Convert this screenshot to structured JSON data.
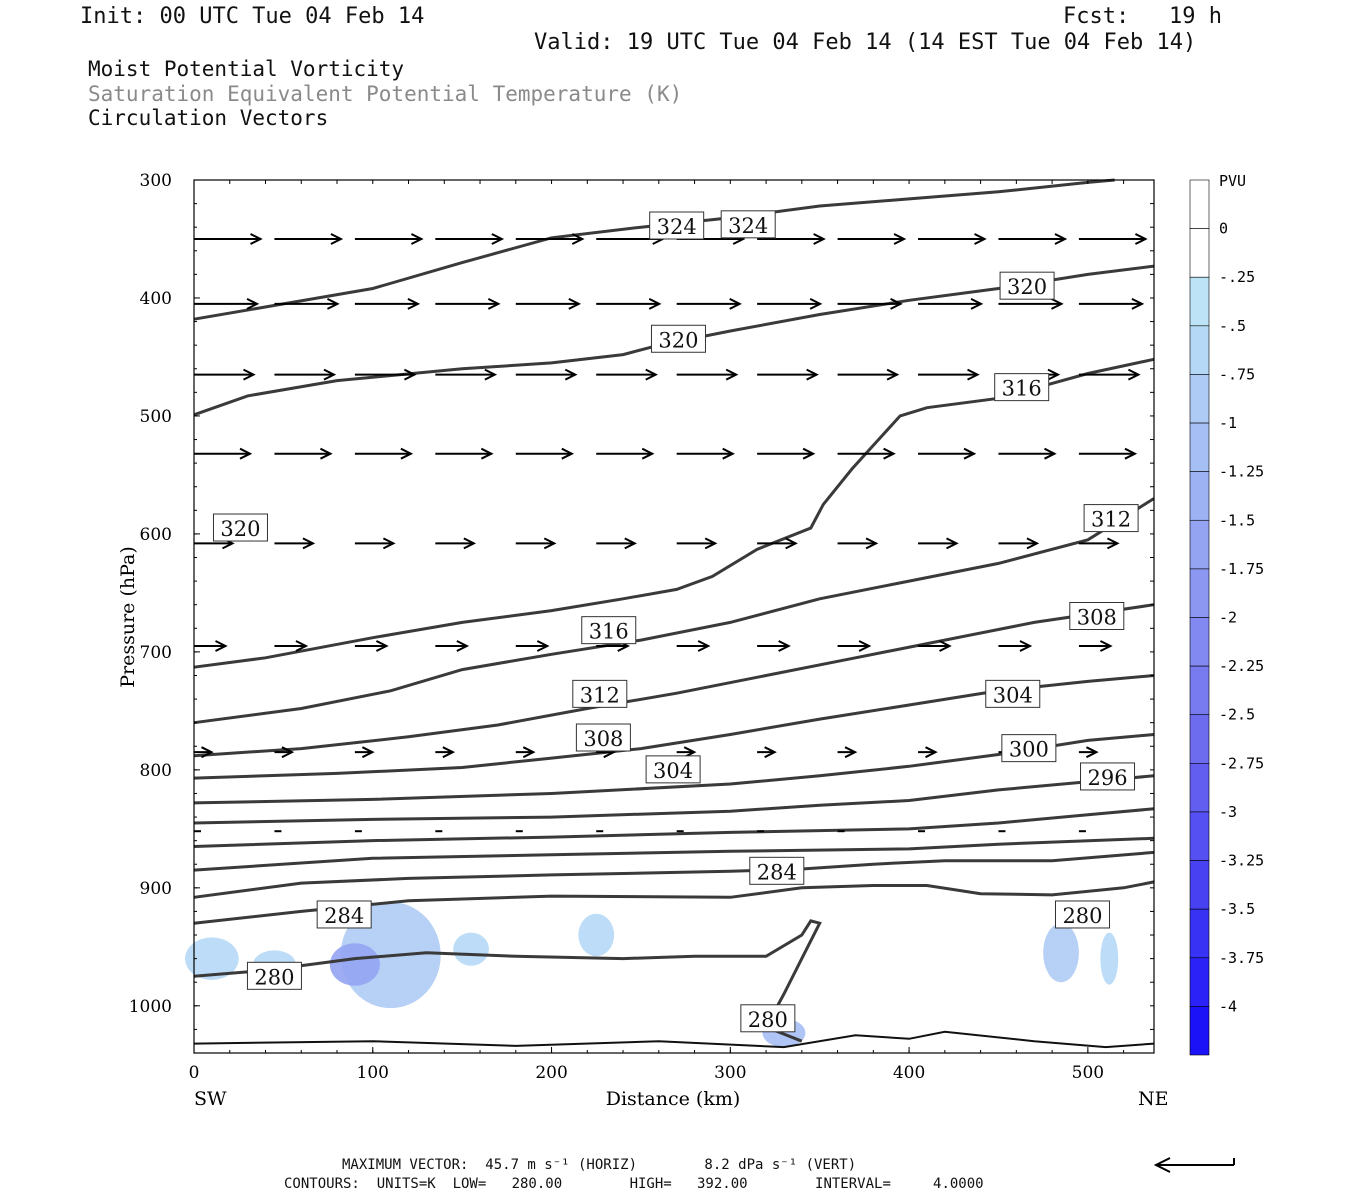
{
  "header": {
    "init": "Init: 00 UTC Tue 04 Feb 14",
    "fcst": "Fcst:   19 h",
    "valid": "Valid: 19 UTC Tue 04 Feb 14 (14 EST Tue 04 Feb 14)"
  },
  "titles": {
    "line1": "Moist Potential Vorticity",
    "line2": "Saturation Equivalent Potential Temperature (K)",
    "line3": "Circulation Vectors"
  },
  "footer": {
    "max_vector": "MAXIMUM VECTOR:  45.7 m s⁻¹ (HORIZ)        8.2 dPa s⁻¹ (VERT)",
    "contours": "CONTOURS:  UNITS=K  LOW=   280.00        HIGH=   392.00        INTERVAL=     4.0000"
  },
  "colors": {
    "contour": "#3a3a3a",
    "vector": "#000000",
    "frame": "#000000"
  },
  "chart_data": {
    "type": "cross-section",
    "xlabel": "Distance (km)",
    "ylabel": "Pressure (hPa)",
    "xlim": [
      0,
      537
    ],
    "ylim": [
      1040,
      300
    ],
    "x_ticks": [
      0,
      100,
      200,
      300,
      400,
      500
    ],
    "y_ticks": [
      300,
      400,
      500,
      600,
      700,
      800,
      900,
      1000
    ],
    "x_end_labels": {
      "left": "SW",
      "right": "NE"
    },
    "colorbar": {
      "unit": "PVU",
      "labels": [
        "0",
        "-.25",
        "-.5",
        "-.75",
        "-1",
        "-1.25",
        "-1.5",
        "-1.75",
        "-2",
        "-2.25",
        "-2.5",
        "-2.75",
        "-3",
        "-3.25",
        "-3.5",
        "-3.75",
        "-4"
      ],
      "colors": [
        "#ffffff",
        "#ffffff",
        "#bde3f7",
        "#b5d8f6",
        "#aecbf5",
        "#a6bff4",
        "#9db2f3",
        "#94a4f2",
        "#8b97f1",
        "#8289f0",
        "#787bf0",
        "#6d6cef",
        "#625ef0",
        "#5550f1",
        "#4741f2",
        "#3832f4",
        "#2a22f6",
        "#1c12f8"
      ]
    },
    "contours": [
      {
        "label": "324",
        "pts": [
          [
            0,
            418
          ],
          [
            50,
            405
          ],
          [
            100,
            392
          ],
          [
            150,
            370
          ],
          [
            200,
            349
          ],
          [
            250,
            340
          ],
          [
            300,
            332
          ],
          [
            350,
            322
          ],
          [
            400,
            316
          ],
          [
            450,
            310
          ],
          [
            500,
            302
          ],
          [
            515,
            300
          ]
        ]
      },
      {
        "label": "320",
        "pts": [
          [
            0,
            499
          ],
          [
            30,
            483
          ],
          [
            80,
            470
          ],
          [
            150,
            460
          ],
          [
            200,
            455
          ],
          [
            240,
            448
          ],
          [
            260,
            440
          ],
          [
            300,
            428
          ],
          [
            350,
            414
          ],
          [
            400,
            402
          ],
          [
            450,
            392
          ],
          [
            500,
            380
          ],
          [
            537,
            373
          ]
        ]
      },
      {
        "label": "316",
        "pts": [
          [
            0,
            713
          ],
          [
            40,
            705
          ],
          [
            100,
            688
          ],
          [
            150,
            675
          ],
          [
            200,
            665
          ],
          [
            240,
            655
          ],
          [
            270,
            647
          ],
          [
            290,
            636
          ],
          [
            315,
            613
          ],
          [
            345,
            595
          ],
          [
            352,
            575
          ],
          [
            368,
            545
          ],
          [
            380,
            525
          ],
          [
            395,
            500
          ],
          [
            410,
            493
          ],
          [
            450,
            485
          ],
          [
            500,
            464
          ],
          [
            537,
            452
          ]
        ]
      },
      {
        "label": "312",
        "pts": [
          [
            0,
            760
          ],
          [
            60,
            748
          ],
          [
            110,
            733
          ],
          [
            150,
            715
          ],
          [
            200,
            702
          ],
          [
            250,
            690
          ],
          [
            300,
            675
          ],
          [
            350,
            655
          ],
          [
            400,
            640
          ],
          [
            450,
            625
          ],
          [
            500,
            605
          ],
          [
            537,
            570
          ]
        ]
      },
      {
        "label": "308",
        "pts": [
          [
            0,
            788
          ],
          [
            60,
            782
          ],
          [
            120,
            772
          ],
          [
            170,
            762
          ],
          [
            220,
            748
          ],
          [
            270,
            735
          ],
          [
            320,
            720
          ],
          [
            370,
            705
          ],
          [
            420,
            690
          ],
          [
            470,
            675
          ],
          [
            537,
            660
          ]
        ]
      },
      {
        "label": "304",
        "pts": [
          [
            0,
            807
          ],
          [
            80,
            803
          ],
          [
            150,
            798
          ],
          [
            200,
            790
          ],
          [
            250,
            782
          ],
          [
            300,
            770
          ],
          [
            350,
            757
          ],
          [
            400,
            745
          ],
          [
            450,
            733
          ],
          [
            500,
            725
          ],
          [
            537,
            720
          ]
        ]
      },
      {
        "label": "300",
        "pts": [
          [
            0,
            828
          ],
          [
            100,
            825
          ],
          [
            200,
            820
          ],
          [
            300,
            812
          ],
          [
            350,
            805
          ],
          [
            400,
            797
          ],
          [
            450,
            787
          ],
          [
            500,
            775
          ],
          [
            537,
            770
          ]
        ]
      },
      {
        "label": "296",
        "pts": [
          [
            0,
            845
          ],
          [
            100,
            842
          ],
          [
            200,
            840
          ],
          [
            300,
            835
          ],
          [
            350,
            830
          ],
          [
            400,
            826
          ],
          [
            450,
            817
          ],
          [
            500,
            810
          ],
          [
            537,
            805
          ]
        ]
      },
      {
        "label": "",
        "pts": [
          [
            0,
            865
          ],
          [
            100,
            860
          ],
          [
            200,
            857
          ],
          [
            300,
            853
          ],
          [
            400,
            850
          ],
          [
            450,
            845
          ],
          [
            500,
            838
          ],
          [
            537,
            833
          ]
        ]
      },
      {
        "label": "",
        "pts": [
          [
            0,
            885
          ],
          [
            100,
            875
          ],
          [
            200,
            872
          ],
          [
            300,
            869
          ],
          [
            400,
            867
          ],
          [
            450,
            863
          ],
          [
            537,
            858
          ]
        ]
      },
      {
        "label": "",
        "pts": [
          [
            0,
            908
          ],
          [
            60,
            896
          ],
          [
            120,
            892
          ],
          [
            200,
            889
          ],
          [
            300,
            886
          ],
          [
            340,
            884
          ],
          [
            380,
            880
          ],
          [
            420,
            877
          ],
          [
            480,
            877
          ],
          [
            537,
            870
          ]
        ]
      },
      {
        "label": "284",
        "pts": [
          [
            0,
            930
          ],
          [
            60,
            920
          ],
          [
            120,
            911
          ],
          [
            200,
            907
          ],
          [
            300,
            908
          ],
          [
            340,
            900
          ],
          [
            380,
            898
          ],
          [
            410,
            898
          ],
          [
            440,
            905
          ],
          [
            480,
            906
          ],
          [
            520,
            900
          ],
          [
            537,
            895
          ]
        ]
      },
      {
        "label": "280",
        "pts": [
          [
            0,
            975
          ],
          [
            40,
            970
          ],
          [
            90,
            960
          ],
          [
            130,
            955
          ],
          [
            180,
            958
          ],
          [
            240,
            960
          ],
          [
            280,
            958
          ],
          [
            320,
            958
          ],
          [
            340,
            940
          ],
          [
            345,
            928
          ],
          [
            350,
            930
          ],
          [
            340,
            960
          ],
          [
            330,
            990
          ],
          [
            320,
            1018
          ],
          [
            340,
            1030
          ]
        ]
      }
    ],
    "contour_labels": [
      {
        "text": "324",
        "x": 270,
        "p": 339
      },
      {
        "text": "324",
        "x": 310,
        "p": 338
      },
      {
        "text": "320",
        "x": 466,
        "p": 390
      },
      {
        "text": "320",
        "x": 271,
        "p": 435
      },
      {
        "text": "316",
        "x": 463,
        "p": 476
      },
      {
        "text": "320",
        "x": 26,
        "p": 595
      },
      {
        "text": "312",
        "x": 513,
        "p": 587
      },
      {
        "text": "316",
        "x": 232,
        "p": 682
      },
      {
        "text": "308",
        "x": 505,
        "p": 670
      },
      {
        "text": "312",
        "x": 227,
        "p": 736
      },
      {
        "text": "304",
        "x": 458,
        "p": 736
      },
      {
        "text": "308",
        "x": 229,
        "p": 773
      },
      {
        "text": "300",
        "x": 467,
        "p": 782
      },
      {
        "text": "304",
        "x": 268,
        "p": 800
      },
      {
        "text": "296",
        "x": 511,
        "p": 806
      },
      {
        "text": "284",
        "x": 326,
        "p": 886
      },
      {
        "text": "284",
        "x": 84,
        "p": 923
      },
      {
        "text": "280",
        "x": 497,
        "p": 923
      },
      {
        "text": "280",
        "x": 45,
        "p": 975
      },
      {
        "text": "280",
        "x": 321,
        "p": 1011
      }
    ],
    "pv_patches": [
      {
        "x": 110,
        "p": 957,
        "rx": 28,
        "rp": 45,
        "value": -0.75
      },
      {
        "x": 90,
        "p": 965,
        "rx": 14,
        "rp": 18,
        "value": -1.5
      },
      {
        "x": 10,
        "p": 960,
        "rx": 15,
        "rp": 18,
        "value": -0.5
      },
      {
        "x": 45,
        "p": 965,
        "rx": 12,
        "rp": 12,
        "value": -0.5
      },
      {
        "x": 155,
        "p": 952,
        "rx": 10,
        "rp": 14,
        "value": -0.5
      },
      {
        "x": 225,
        "p": 940,
        "rx": 10,
        "rp": 18,
        "value": -0.5
      },
      {
        "x": 485,
        "p": 955,
        "rx": 10,
        "rp": 25,
        "value": -0.75
      },
      {
        "x": 512,
        "p": 960,
        "rx": 5,
        "rp": 22,
        "value": -0.5
      },
      {
        "x": 330,
        "p": 1023,
        "rx": 12,
        "rp": 12,
        "value": -1
      }
    ],
    "vector_levels": [
      {
        "p": 350,
        "x0": 0,
        "dx": 45,
        "dy": 0,
        "len": 38
      },
      {
        "p": 405,
        "x0": 0,
        "dx": 45,
        "dy": 0,
        "len": 36
      },
      {
        "p": 465,
        "x0": 0,
        "dx": 45,
        "dy": 0,
        "len": 34
      },
      {
        "p": 532,
        "x0": 0,
        "dx": 45,
        "dy": 0,
        "len": 32
      },
      {
        "p": 608,
        "x0": 0,
        "dx": 45,
        "dy": 0,
        "len": 22
      },
      {
        "p": 695,
        "x0": 0,
        "dx": 45,
        "dy": 0,
        "len": 18
      },
      {
        "p": 785,
        "x0": 0,
        "dx": 45,
        "dy": 0,
        "len": 10
      },
      {
        "p": 852,
        "x0": 0,
        "dx": 45,
        "dy": 0,
        "len": 4
      }
    ],
    "surface_pts": [
      [
        0,
        1032
      ],
      [
        100,
        1030
      ],
      [
        180,
        1034
      ],
      [
        260,
        1030
      ],
      [
        330,
        1035
      ],
      [
        370,
        1025
      ],
      [
        400,
        1028
      ],
      [
        420,
        1022
      ],
      [
        470,
        1030
      ],
      [
        510,
        1035
      ],
      [
        537,
        1032
      ]
    ]
  }
}
